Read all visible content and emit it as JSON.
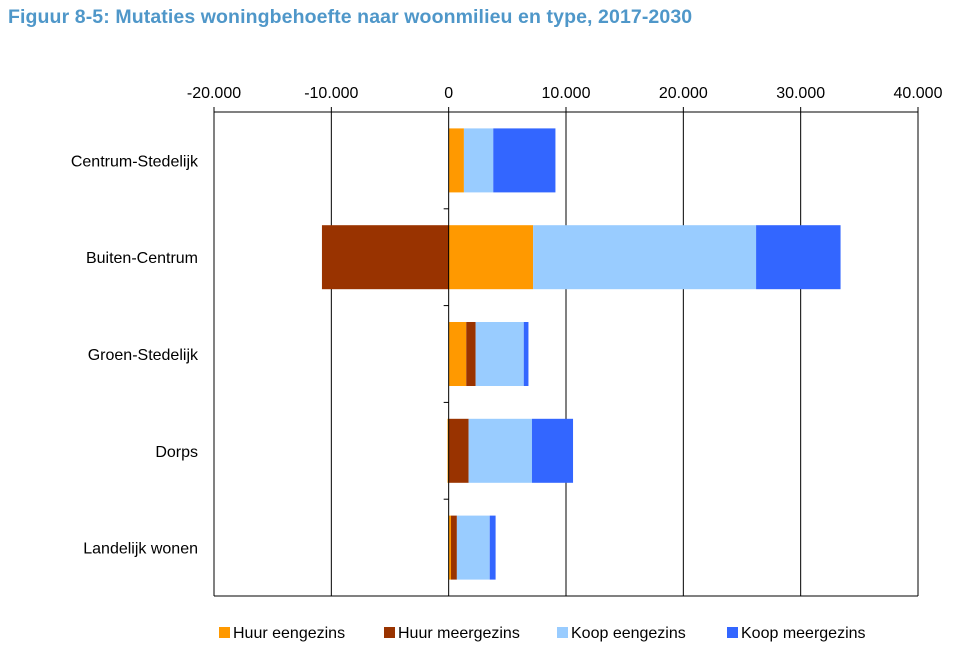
{
  "title": "Figuur 8-5: Mutaties woningbehoefte naar woonmilieu en type, 2017-2030",
  "chart_data": {
    "type": "bar",
    "orientation": "horizontal",
    "stacked": true,
    "title": "Figuur 8-5: Mutaties woningbehoefte naar woonmilieu en type, 2017-2030",
    "xlabel": "",
    "ylabel": "",
    "xlim": [
      -20000,
      40000
    ],
    "x_ticks": [
      -20000,
      -10000,
      0,
      10000,
      20000,
      30000,
      40000
    ],
    "x_tick_labels": [
      "-20.000",
      "-10.000",
      "0",
      "10.000",
      "20.000",
      "30.000",
      "40.000"
    ],
    "x_axis_position": "top",
    "grid": "vertical",
    "legend_position": "bottom",
    "categories": [
      "Centrum-Stedelijk",
      "Buiten-Centrum",
      "Groen-Stedelijk",
      "Dorps",
      "Landelijk wonen"
    ],
    "series": [
      {
        "name": "Huur eengezins",
        "color": "#ff9900",
        "values": [
          1300,
          7200,
          1500,
          -100,
          200
        ]
      },
      {
        "name": "Huur meergezins",
        "color": "#993300",
        "values": [
          0,
          -10800,
          800,
          1700,
          500
        ]
      },
      {
        "name": "Koop eengezins",
        "color": "#99ccff",
        "values": [
          2500,
          19000,
          4100,
          5400,
          2800
        ]
      },
      {
        "name": "Koop meergezins",
        "color": "#3366ff",
        "values": [
          5300,
          7200,
          400,
          3500,
          500
        ]
      }
    ]
  }
}
